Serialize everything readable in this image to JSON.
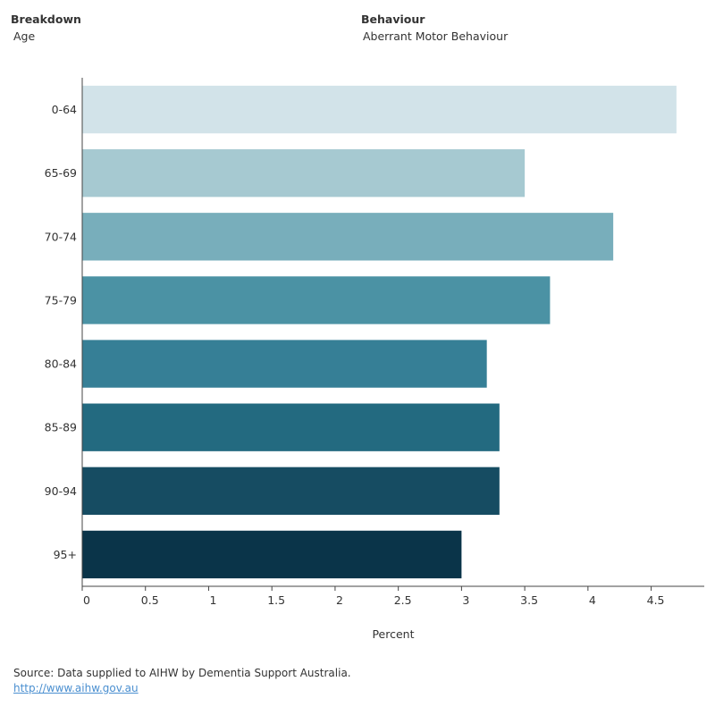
{
  "filters": {
    "breakdown_label": "Breakdown",
    "breakdown_value": "Age",
    "behaviour_label": "Behaviour",
    "behaviour_value": "Aberrant Motor Behaviour"
  },
  "chart_data": {
    "type": "bar",
    "orientation": "horizontal",
    "title": "",
    "xlabel": "Percent",
    "ylabel": "",
    "categories": [
      "0-64",
      "65-69",
      "70-74",
      "75-79",
      "80-84",
      "85-89",
      "90-94",
      "95+"
    ],
    "values": [
      4.7,
      3.5,
      4.2,
      3.7,
      3.2,
      3.3,
      3.3,
      3.0
    ],
    "colors": [
      "#d2e3e9",
      "#a6c9d1",
      "#78aebb",
      "#4b92a4",
      "#367f96",
      "#236a80",
      "#164c62",
      "#0a3449"
    ],
    "xlim": [
      0,
      4.92
    ],
    "xticks": [
      0,
      0.5,
      1,
      1.5,
      2,
      2.5,
      3,
      3.5,
      4,
      4.5
    ],
    "xtick_labels": [
      "0",
      "0.5",
      "1",
      "1.5",
      "2",
      "2.5",
      "3",
      "3.5",
      "4",
      "4.5"
    ],
    "grid": false
  },
  "footer": {
    "source_text": "Source: Data supplied to AIHW by Dementia Support Australia.",
    "link_text": "http://www.aihw.gov.au"
  }
}
